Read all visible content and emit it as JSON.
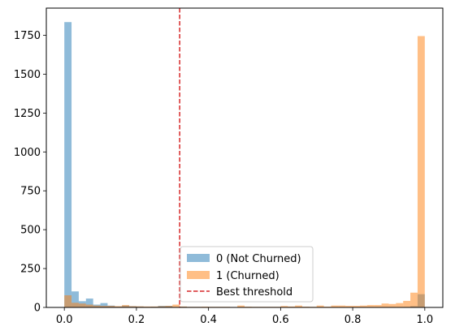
{
  "chart_data": {
    "type": "bar",
    "title": "",
    "xlabel": "",
    "ylabel": "",
    "xlim": [
      -0.05,
      1.05
    ],
    "ylim": [
      0,
      1925
    ],
    "x_ticks": [
      0.0,
      0.2,
      0.4,
      0.6,
      0.8,
      1.0
    ],
    "x_tick_labels": [
      "0.0",
      "0.2",
      "0.4",
      "0.6",
      "0.8",
      "1.0"
    ],
    "y_ticks": [
      0,
      250,
      500,
      750,
      1000,
      1250,
      1500,
      1750
    ],
    "y_tick_labels": [
      "0",
      "250",
      "500",
      "750",
      "1000",
      "1250",
      "1500",
      "1750"
    ],
    "grid": false,
    "bins": 50,
    "bin_start": 0.0,
    "bin_width": 0.02,
    "series": [
      {
        "name": "0 (Not Churned)",
        "color": "#1f77b4",
        "alpha": 0.5,
        "values": [
          1835,
          103,
          40,
          57,
          18,
          28,
          12,
          6,
          12,
          8,
          6,
          4,
          5,
          10,
          10,
          3,
          5,
          3,
          3,
          2,
          2,
          2,
          1,
          2,
          1,
          1,
          1,
          1,
          1,
          1,
          1,
          1,
          1,
          1,
          1,
          1,
          1,
          1,
          1,
          1,
          1,
          1,
          1,
          1,
          1,
          2,
          2,
          3,
          8,
          85
        ]
      },
      {
        "name": "1 (Churned)",
        "color": "#ff7f0e",
        "alpha": 0.5,
        "values": [
          78,
          30,
          25,
          18,
          12,
          10,
          10,
          8,
          15,
          8,
          7,
          6,
          6,
          8,
          10,
          18,
          6,
          4,
          4,
          5,
          4,
          4,
          4,
          3,
          12,
          5,
          4,
          4,
          4,
          4,
          9,
          6,
          12,
          5,
          4,
          12,
          5,
          12,
          12,
          10,
          10,
          12,
          15,
          15,
          25,
          22,
          28,
          42,
          95,
          1745
        ]
      }
    ],
    "vline": {
      "name": "Best threshold",
      "x": 0.32,
      "color": "#d62728",
      "style": "dashed"
    },
    "legend_position": "lower center"
  }
}
